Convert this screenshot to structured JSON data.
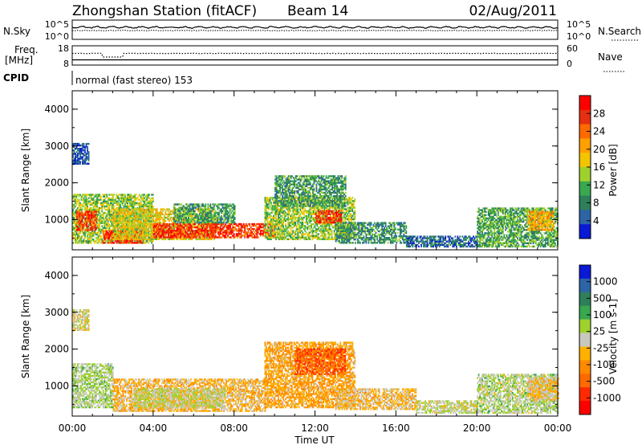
{
  "header": {
    "title": "Zhongshan Station (fitACF)",
    "beam": "Beam 14",
    "date": "02/Aug/2011"
  },
  "noise_panel": {
    "left_label": "N.Sky",
    "left_top": "10^5",
    "left_bottom": "10^0",
    "right_label": "N.Search",
    "right_top": "10^5",
    "right_bottom": "10^0"
  },
  "freq_panel": {
    "left_label_1": "Freq.",
    "left_label_2": "[MHz]",
    "left_top": "18",
    "left_bottom": "8",
    "right_label": "Nave",
    "right_top": "60",
    "right_bottom": "0"
  },
  "cpid": {
    "label": "CPID",
    "text": "normal (fast stereo) 153"
  },
  "axes": {
    "ylabel": "Slant Range [km]",
    "xlabel": "Time UT",
    "yticks": [
      "4000",
      "3000",
      "2000",
      "1000"
    ],
    "xticks": [
      "00:00",
      "04:00",
      "08:00",
      "12:00",
      "16:00",
      "20:00",
      "00:00"
    ]
  },
  "colorbars": {
    "power": {
      "label": "Power [dB]",
      "ticks": [
        "28",
        "24",
        "20",
        "16",
        "12",
        "8",
        "4"
      ],
      "colors": [
        "#ff0000",
        "#e53010",
        "#ff6a00",
        "#ff9f00",
        "#f2c500",
        "#9fd12e",
        "#39a84f",
        "#2e7f5a",
        "#2d64a6",
        "#0a19d6"
      ]
    },
    "velocity": {
      "label": "Velocity [m s-1]",
      "ticks": [
        "1000",
        "500",
        "100",
        "25",
        "-25",
        "-100",
        "-500",
        "-1000"
      ],
      "colors": [
        "#0a19d6",
        "#2d64a6",
        "#2e7f5a",
        "#39a84f",
        "#9fd12e",
        "#c8c8c0",
        "#ffb000",
        "#ff8a00",
        "#ff6a00",
        "#ff2a00",
        "#ff0000"
      ]
    }
  },
  "chart_data": {
    "type": "heatmap",
    "x_range_hours": [
      0,
      24
    ],
    "y_range_km": [
      180,
      4500
    ],
    "power_scale_db": [
      0,
      32
    ],
    "velocity_scale_ms": [
      -1200,
      1200
    ],
    "power_regions": [
      {
        "t0": 0.0,
        "t1": 0.8,
        "r0": 2500,
        "r1": 3050,
        "v": 4
      },
      {
        "t0": 0.0,
        "t1": 4.0,
        "r0": 350,
        "r1": 1700,
        "v": 14
      },
      {
        "t0": 0.2,
        "t1": 1.2,
        "r0": 700,
        "r1": 1200,
        "v": 27
      },
      {
        "t0": 1.5,
        "t1": 3.5,
        "r0": 350,
        "r1": 700,
        "v": 27
      },
      {
        "t0": 2.0,
        "t1": 7.0,
        "r0": 450,
        "r1": 1300,
        "v": 17
      },
      {
        "t0": 4.0,
        "t1": 10.0,
        "r0": 500,
        "r1": 900,
        "v": 27
      },
      {
        "t0": 5.0,
        "t1": 8.0,
        "r0": 900,
        "r1": 1400,
        "v": 10
      },
      {
        "t0": 9.5,
        "t1": 14.0,
        "r0": 450,
        "r1": 1600,
        "v": 14
      },
      {
        "t0": 10.0,
        "t1": 13.5,
        "r0": 1350,
        "r1": 2200,
        "v": 10
      },
      {
        "t0": 12.0,
        "t1": 13.3,
        "r0": 900,
        "r1": 1250,
        "v": 27
      },
      {
        "t0": 13.0,
        "t1": 16.5,
        "r0": 350,
        "r1": 900,
        "v": 9
      },
      {
        "t0": 16.5,
        "t1": 20.0,
        "r0": 250,
        "r1": 550,
        "v": 6
      },
      {
        "t0": 20.0,
        "t1": 24.0,
        "r0": 250,
        "r1": 1300,
        "v": 11
      },
      {
        "t0": 22.5,
        "t1": 23.8,
        "r0": 700,
        "r1": 1200,
        "v": 20
      }
    ],
    "velocity_regions": [
      {
        "t0": 0.0,
        "t1": 0.8,
        "r0": 2500,
        "r1": 3050,
        "v": 0
      },
      {
        "t0": 0.0,
        "t1": 2.0,
        "r0": 400,
        "r1": 1600,
        "v": 150
      },
      {
        "t0": 2.0,
        "t1": 9.5,
        "r0": 300,
        "r1": 1200,
        "v": -200
      },
      {
        "t0": 3.0,
        "t1": 7.5,
        "r0": 400,
        "r1": 900,
        "v": 80
      },
      {
        "t0": 9.5,
        "t1": 14.0,
        "r0": 400,
        "r1": 2200,
        "v": -300
      },
      {
        "t0": 11.0,
        "t1": 13.5,
        "r0": 1300,
        "r1": 2000,
        "v": -700
      },
      {
        "t0": 13.0,
        "t1": 17.0,
        "r0": 350,
        "r1": 900,
        "v": -150
      },
      {
        "t0": 17.0,
        "t1": 20.0,
        "r0": 250,
        "r1": 600,
        "v": 50
      },
      {
        "t0": 20.0,
        "t1": 24.0,
        "r0": 250,
        "r1": 1300,
        "v": 120
      },
      {
        "t0": 22.5,
        "t1": 24.0,
        "r0": 600,
        "r1": 1200,
        "v": -150
      }
    ]
  }
}
